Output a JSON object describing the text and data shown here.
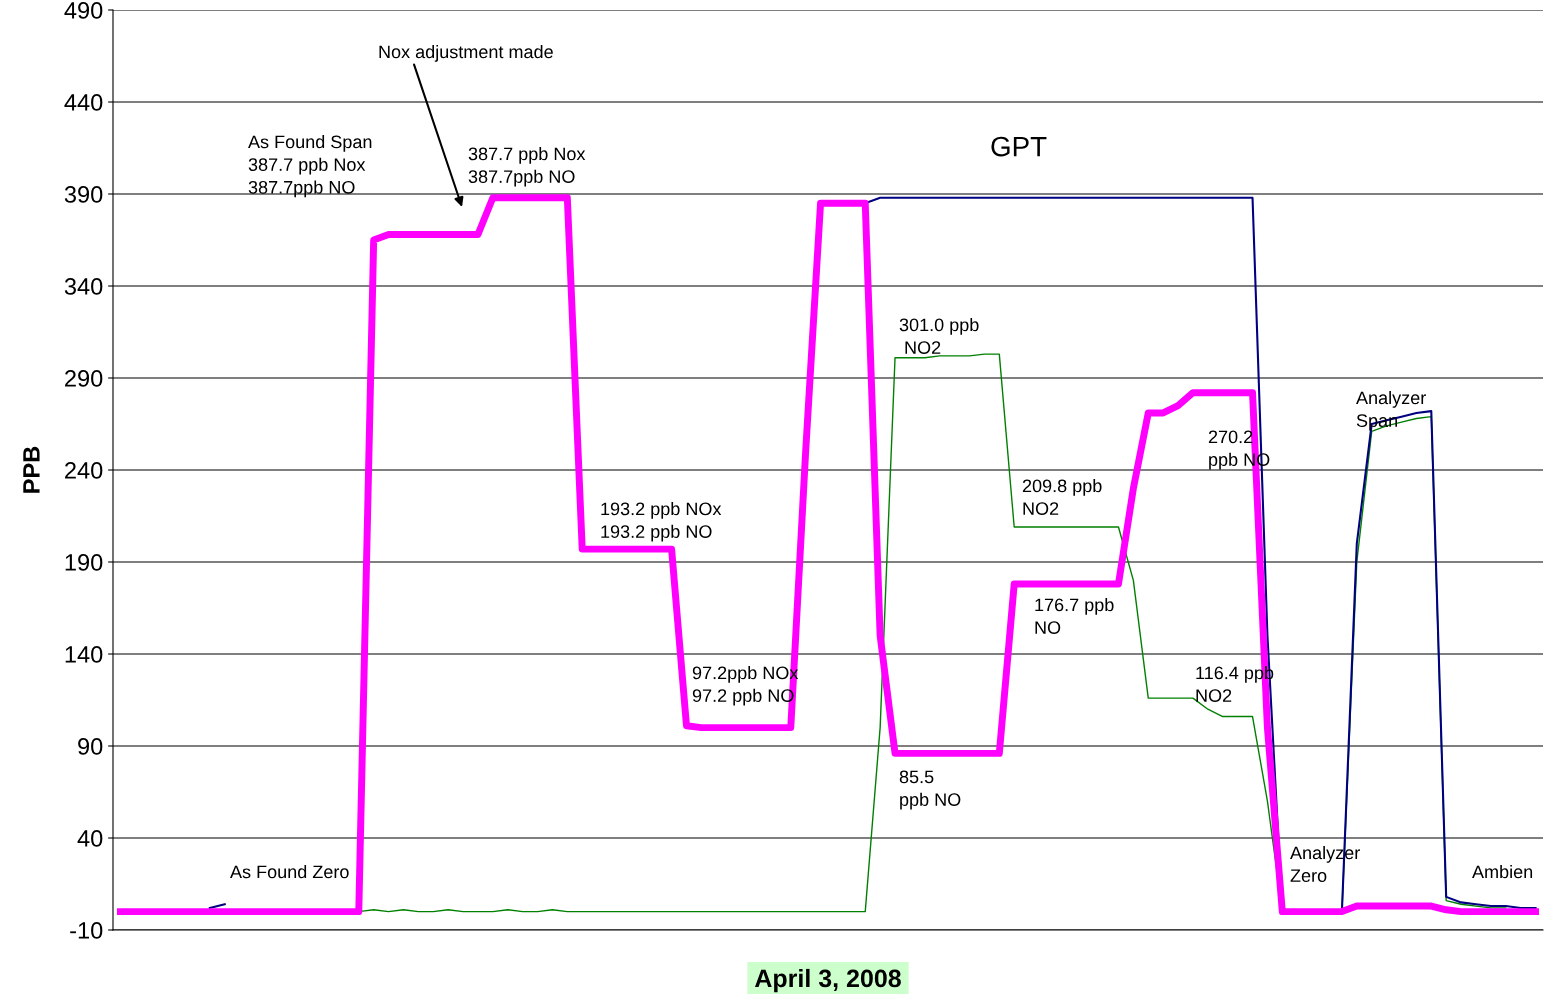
{
  "chart_data": {
    "type": "line",
    "xlabel": "April 3, 2008",
    "ylabel": "PPB",
    "ylim": [
      -10,
      490
    ],
    "yticks": [
      -10,
      40,
      90,
      140,
      190,
      240,
      290,
      340,
      390,
      440,
      490
    ],
    "grid": "y",
    "tick_labels": "y",
    "marker": "none",
    "line_style": "solid",
    "categories": [
      null,
      null,
      null,
      null,
      null,
      null,
      null,
      null,
      null,
      null,
      null,
      null,
      null,
      null,
      null,
      null,
      null,
      null,
      null,
      null,
      null,
      null,
      null,
      null,
      null,
      null,
      null,
      null,
      null,
      null,
      null,
      null,
      null,
      null,
      null,
      null,
      null,
      null,
      null,
      null,
      null,
      null,
      null,
      null,
      null,
      null,
      null,
      null,
      null,
      null,
      null,
      null,
      null,
      null,
      null,
      null,
      null,
      null,
      null,
      null,
      null,
      null,
      null,
      null,
      null,
      null,
      null,
      null,
      null,
      null,
      null,
      null,
      null,
      null,
      null,
      null,
      null,
      null,
      null,
      null,
      null,
      null,
      null,
      null,
      null,
      null,
      null,
      null,
      null,
      null,
      null,
      null,
      null,
      null,
      null,
      null
    ],
    "series": [
      {
        "color": "#008000",
        "values": [
          null,
          null,
          null,
          null,
          null,
          null,
          null,
          null,
          null,
          null,
          null,
          null,
          null,
          null,
          null,
          null,
          0,
          1,
          0,
          1,
          0,
          0,
          1,
          0,
          0,
          0,
          1,
          0,
          0,
          1,
          0,
          0,
          0,
          0,
          0,
          0,
          0,
          0,
          0,
          0,
          0,
          0,
          0,
          0,
          0,
          0,
          0,
          0,
          0,
          0,
          0,
          100,
          301,
          301,
          301,
          302,
          302,
          302,
          303,
          303,
          209,
          209,
          209,
          209,
          209,
          209,
          209,
          209,
          180,
          116,
          116,
          116,
          116,
          110,
          106,
          106,
          106,
          60,
          0,
          0,
          0,
          0,
          0,
          190,
          261,
          264,
          266,
          268,
          269,
          6,
          4,
          3,
          2,
          2,
          null,
          null
        ]
      },
      {
        "color": "#000080",
        "values": [
          null,
          null,
          null,
          null,
          null,
          null,
          2,
          4,
          null,
          null,
          null,
          null,
          null,
          null,
          null,
          null,
          null,
          null,
          null,
          null,
          null,
          null,
          null,
          null,
          null,
          null,
          null,
          null,
          null,
          null,
          null,
          null,
          null,
          null,
          null,
          null,
          null,
          null,
          null,
          null,
          null,
          null,
          null,
          null,
          null,
          null,
          null,
          null,
          null,
          null,
          385,
          388,
          388,
          388,
          388,
          388,
          388,
          388,
          388,
          388,
          388,
          388,
          388,
          388,
          388,
          388,
          388,
          388,
          388,
          388,
          388,
          388,
          388,
          388,
          388,
          388,
          388,
          150,
          0,
          0,
          0,
          0,
          0,
          200,
          265,
          267,
          269,
          271,
          272,
          8,
          5,
          4,
          3,
          3,
          2,
          2
        ]
      },
      {
        "color": "#ff00ff",
        "values": [
          0,
          0,
          0,
          0,
          0,
          0,
          0,
          0,
          0,
          0,
          0,
          0,
          0,
          0,
          0,
          0,
          0,
          365,
          368,
          368,
          368,
          368,
          368,
          368,
          368,
          388,
          388,
          388,
          388,
          388,
          388,
          197,
          197,
          197,
          197,
          197,
          197,
          197,
          101,
          100,
          100,
          100,
          100,
          100,
          100,
          100,
          250,
          385,
          385,
          385,
          385,
          150,
          86,
          86,
          86,
          86,
          86,
          86,
          86,
          86,
          178,
          178,
          178,
          178,
          178,
          178,
          178,
          178,
          230,
          271,
          271,
          275,
          282,
          282,
          282,
          282,
          282,
          100,
          0,
          0,
          0,
          0,
          0,
          3,
          3,
          3,
          3,
          3,
          3,
          1,
          0,
          0,
          0,
          0,
          0,
          0
        ]
      }
    ],
    "annotations": [
      "Nox adjustment made",
      "As Found Span\n387.7 ppb Nox\n387.7ppb NO",
      "387.7 ppb Nox\n387.7ppb NO",
      "GPT",
      "301.0 ppb\n NO2",
      "193.2 ppb NOx\n193.2 ppb NO",
      "209.8 ppb\nNO2",
      "270.2\nppb NO",
      "Analyzer\nSpan",
      "176.7 ppb\nNO",
      "97.2ppb NOx\n97.2 ppb NO",
      "116.4 ppb\nNO2",
      "85.5\nppb NO",
      "Analyzer\nZero",
      "As Found Zero",
      "Ambien"
    ]
  }
}
